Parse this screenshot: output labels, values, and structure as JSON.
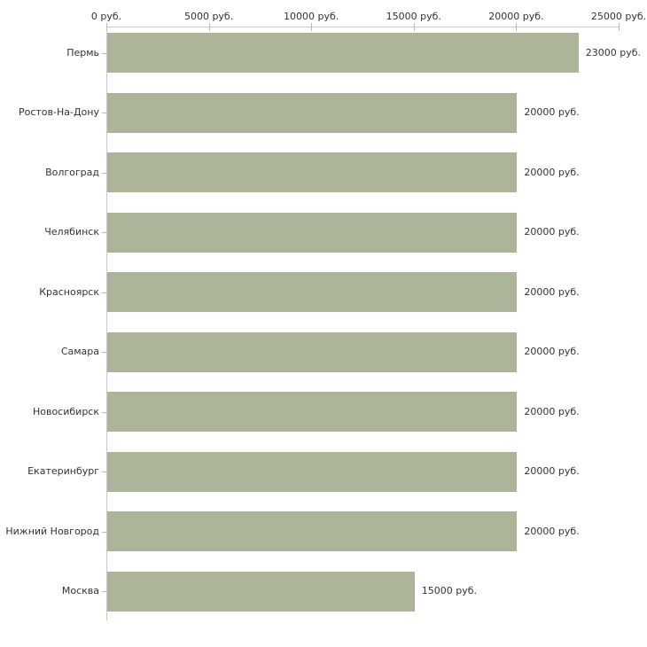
{
  "chart_data": {
    "type": "bar",
    "orientation": "horizontal",
    "categories": [
      "Пермь",
      "Ростов-На-Дону",
      "Волгоград",
      "Челябинск",
      "Красноярск",
      "Самара",
      "Новосибирск",
      "Екатеринбург",
      "Нижний Новгород",
      "Москва"
    ],
    "values": [
      23000,
      20000,
      20000,
      20000,
      20000,
      20000,
      20000,
      20000,
      20000,
      15000
    ],
    "value_labels": [
      "23000 руб.",
      "20000 руб.",
      "20000 руб.",
      "20000 руб.",
      "20000 руб.",
      "20000 руб.",
      "20000 руб.",
      "20000 руб.",
      "20000 руб.",
      "15000 руб."
    ],
    "x_axis": {
      "position": "top",
      "min": 0,
      "max": 25000,
      "tick_interval": 5000,
      "tick_values": [
        0,
        5000,
        10000,
        15000,
        20000,
        25000
      ],
      "tick_labels": [
        "0 руб.",
        "5000 руб.",
        "10000 руб.",
        "15000 руб.",
        "20000 руб.",
        "25000 руб."
      ]
    },
    "unit": "руб.",
    "grid": false,
    "legend": "none",
    "colors": {
      "bar": "#acb49a",
      "axis_line": "#c9c9c9",
      "tick_mark": "#b9bd99",
      "text": "#333333",
      "background": "#ffffff"
    }
  }
}
